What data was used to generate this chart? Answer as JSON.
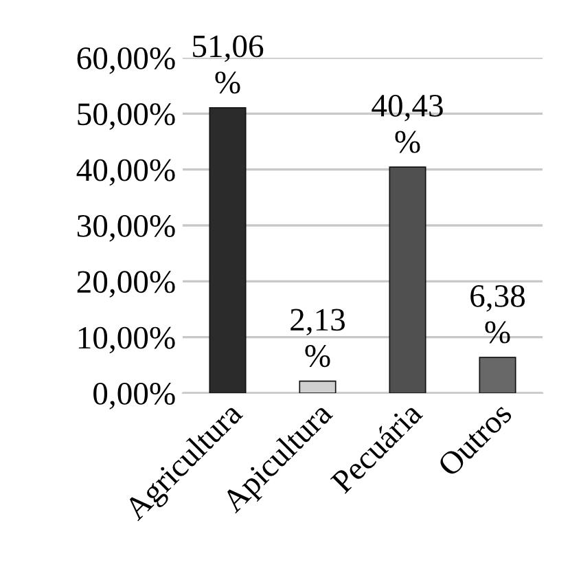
{
  "chart_data": {
    "type": "bar",
    "categories": [
      "Agricultura",
      "Apicultura",
      "Pecuária",
      "Outros"
    ],
    "values": [
      51.06,
      2.13,
      40.43,
      6.38
    ],
    "colors": [
      "#2b2b2b",
      "#d0d0d0",
      "#505050",
      "#686868"
    ],
    "value_labels": [
      "51,06\n%",
      "2,13\n%",
      "40,43\n%",
      "6,38\n%"
    ],
    "ylim": [
      0,
      60
    ],
    "yticks": [
      {
        "value": 0,
        "label": "0,00%"
      },
      {
        "value": 10,
        "label": "10,00%"
      },
      {
        "value": 20,
        "label": "20,00%"
      },
      {
        "value": 30,
        "label": "30,00%"
      },
      {
        "value": 40,
        "label": "40,00%"
      },
      {
        "value": 50,
        "label": "50,00%"
      },
      {
        "value": 60,
        "label": "60,00%"
      }
    ],
    "grid": "y",
    "legend": false
  }
}
